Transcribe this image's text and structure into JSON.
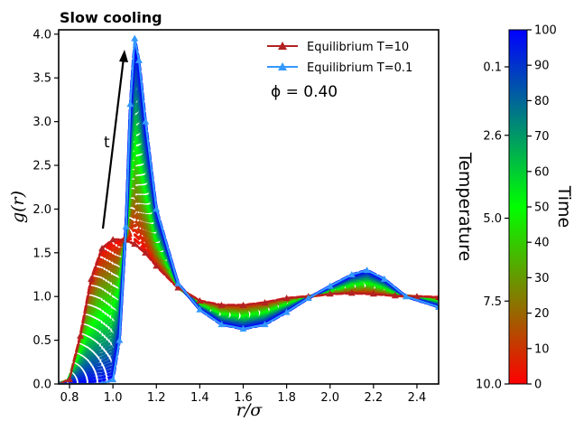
{
  "chart_data": {
    "type": "line",
    "title": "Slow cooling",
    "xlabel": "r/σ",
    "ylabel": "g(r)",
    "xlim": [
      0.75,
      2.5
    ],
    "ylim": [
      0.0,
      4.05
    ],
    "x_ticks": [
      "0.8",
      "1.0",
      "1.2",
      "1.4",
      "1.6",
      "1.8",
      "2.0",
      "2.2",
      "2.4"
    ],
    "y_ticks": [
      "0.0",
      "0.5",
      "1.0",
      "1.5",
      "2.0",
      "2.5",
      "3.0",
      "3.5",
      "4.0"
    ],
    "grid": false,
    "legend_position": "top-right",
    "series": [
      {
        "name": "Equilibrium T=10",
        "color": "#b22222",
        "marker": "triangle",
        "x": [
          0.75,
          0.8,
          0.85,
          0.9,
          0.95,
          1.0,
          1.05,
          1.1,
          1.15,
          1.2,
          1.3,
          1.4,
          1.5,
          1.6,
          1.7,
          1.8,
          1.9,
          2.0,
          2.1,
          2.2,
          2.3,
          2.4,
          2.5
        ],
        "y": [
          0.0,
          0.05,
          0.55,
          1.2,
          1.55,
          1.65,
          1.65,
          1.6,
          1.5,
          1.35,
          1.1,
          0.95,
          0.9,
          0.9,
          0.93,
          0.98,
          1.0,
          1.03,
          1.04,
          1.03,
          1.01,
          1.0,
          0.99
        ]
      },
      {
        "name": "Equilibrium T=0.1",
        "color": "#3399ff",
        "marker": "triangle",
        "x": [
          0.75,
          0.95,
          1.0,
          1.03,
          1.06,
          1.08,
          1.1,
          1.12,
          1.15,
          1.2,
          1.3,
          1.4,
          1.5,
          1.6,
          1.7,
          1.8,
          1.9,
          2.0,
          2.1,
          2.17,
          2.25,
          2.35,
          2.5
        ],
        "y": [
          0.0,
          0.0,
          0.05,
          0.5,
          1.8,
          3.2,
          3.95,
          3.7,
          3.0,
          2.0,
          1.15,
          0.85,
          0.68,
          0.63,
          0.68,
          0.82,
          0.98,
          1.12,
          1.25,
          1.3,
          1.2,
          1.0,
          0.88
        ]
      }
    ],
    "annotations": {
      "phi": "ϕ = 0.40",
      "arrow_label": "t"
    },
    "colorbar": {
      "colors": [
        "#ff0000",
        "#00ff00",
        "#0000ff"
      ],
      "time_label": "Time",
      "temperature_label": "Temperature",
      "time_ticks": [
        "0",
        "10",
        "20",
        "30",
        "40",
        "50",
        "60",
        "70",
        "80",
        "90",
        "100"
      ],
      "temperature_ticks": [
        "10.0",
        "7.5",
        "5.0",
        "2.6",
        "0.1"
      ]
    }
  }
}
